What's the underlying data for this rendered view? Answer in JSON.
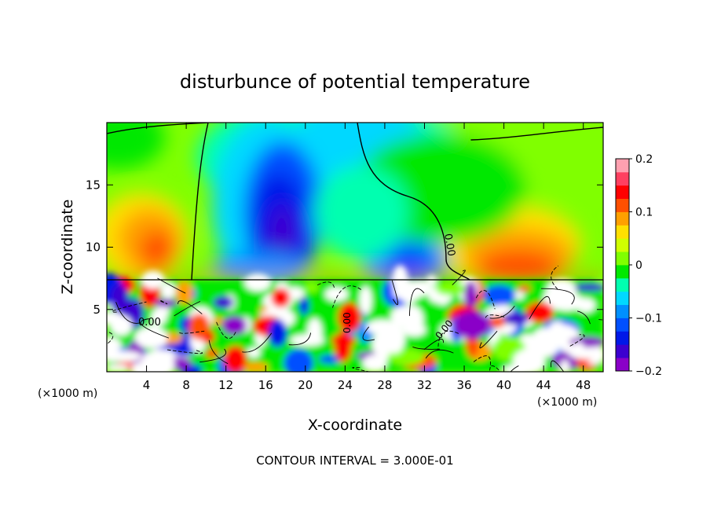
{
  "chart_data": {
    "type": "heatmap",
    "title": "disturbunce of potential temperature",
    "xlabel": "X-coordinate",
    "ylabel": "Z-coordinate",
    "x_unit_label_left": "(×1000 m)",
    "x_unit_label_right": "(×1000 m)",
    "xlim": [
      0,
      50
    ],
    "ylim": [
      0,
      20
    ],
    "x_ticks": [
      "4",
      "8",
      "12",
      "16",
      "20",
      "24",
      "28",
      "32",
      "36",
      "40",
      "44",
      "48"
    ],
    "y_ticks": [
      "5",
      "10",
      "15"
    ],
    "colorbar": {
      "range": [
        -0.2,
        0.2
      ],
      "tick_labels": [
        "0.2",
        "0.1",
        "0",
        "−0.1",
        "−0.2"
      ]
    },
    "contour_labels": [
      "0.00",
      "0.00",
      "0.00",
      "0.00"
    ],
    "footer": "CONTOUR INTERVAL = 3.000E-01"
  },
  "colors": {
    "palette": [
      "#8a00c8",
      "#3c00d0",
      "#0018e8",
      "#0050ff",
      "#0090ff",
      "#00d8ff",
      "#00ffb0",
      "#00e800",
      "#80ff00",
      "#d0ff00",
      "#ffe000",
      "#ffa000",
      "#ff5000",
      "#ff0000",
      "#ff4060",
      "#ffa0b0"
    ]
  }
}
